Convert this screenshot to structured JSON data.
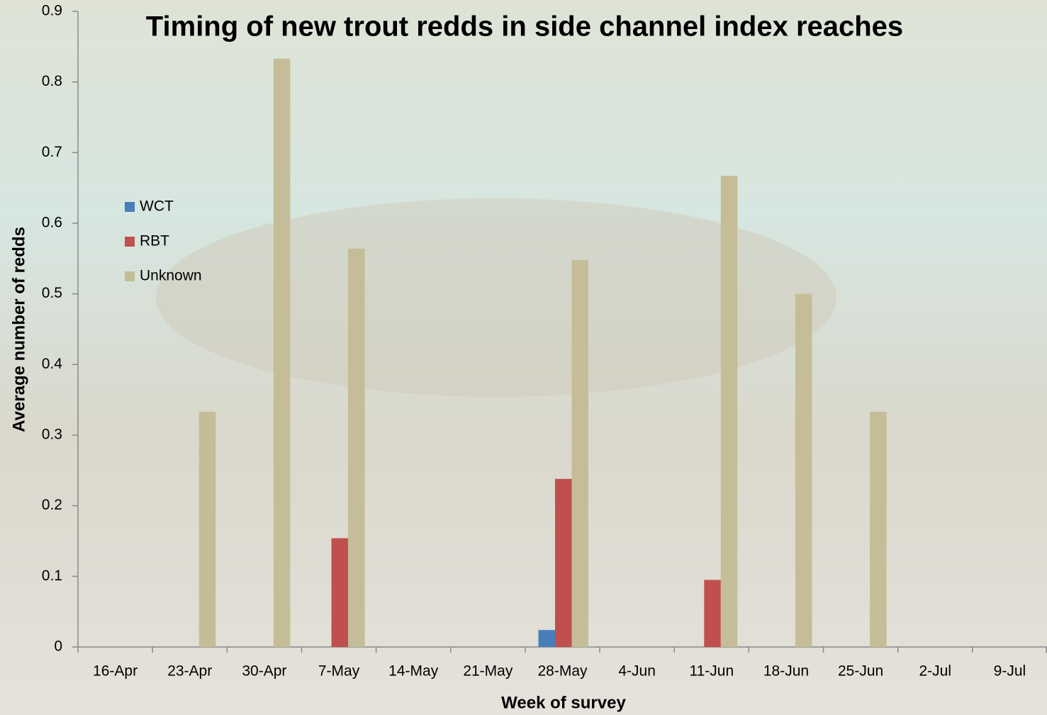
{
  "chart_data": {
    "type": "bar",
    "title": "Timing of new trout redds in side channel index reaches",
    "x_label": "Week of survey",
    "y_label": "Average number of redds",
    "categories": [
      "16-Apr",
      "23-Apr",
      "30-Apr",
      "7-May",
      "14-May",
      "21-May",
      "28-May",
      "4-Jun",
      "11-Jun",
      "18-Jun",
      "25-Jun",
      "2-Jul",
      "9-Jul"
    ],
    "series": [
      {
        "name": "WCT",
        "color": "#4a7ebb",
        "values": [
          0,
          0,
          0,
          0,
          0,
          0,
          0.024,
          0,
          0,
          0,
          0,
          0,
          0
        ]
      },
      {
        "name": "RBT",
        "color": "#c0504d",
        "values": [
          0,
          0,
          0,
          0.154,
          0,
          0,
          0.238,
          0,
          0.095,
          0,
          0,
          0,
          0
        ]
      },
      {
        "name": "Unknown",
        "color": "#c4bd97",
        "values": [
          0,
          0.333,
          0.833,
          0.564,
          0,
          0,
          0.548,
          0,
          0.667,
          0.5,
          0.333,
          0,
          0
        ]
      }
    ],
    "ylim": [
      0,
      0.9
    ],
    "yticks": [
      0,
      0.1,
      0.2,
      0.3,
      0.4,
      0.5,
      0.6,
      0.7,
      0.8,
      0.9
    ],
    "legend": "left"
  }
}
